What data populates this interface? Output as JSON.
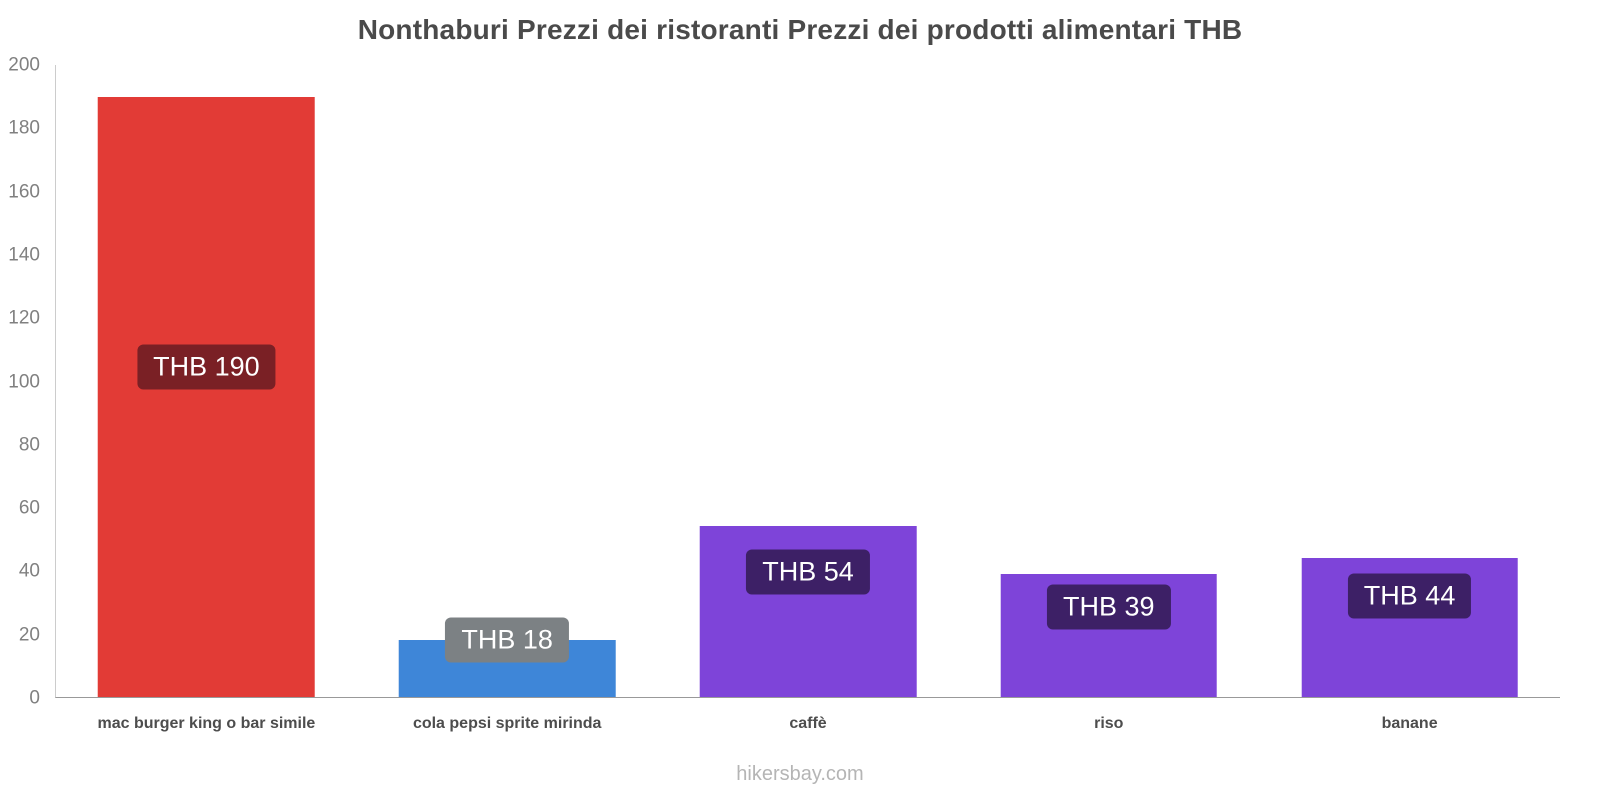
{
  "title": "Nonthaburi Prezzi dei ristoranti Prezzi dei prodotti alimentari THB",
  "footer": "hikersbay.com",
  "colors": {
    "red_bar": "#e23b36",
    "red_badge": "#7a2025",
    "blue_bar": "#3e86d8",
    "gray_badge": "#7c8184",
    "purple_bar": "#7e44d9",
    "purple_badge": "#3d2066",
    "axis_line": "#cccccc",
    "baseline": "#999999"
  },
  "chart_data": {
    "type": "bar",
    "title": "Nonthaburi Prezzi dei ristoranti Prezzi dei prodotti alimentari THB",
    "categories": [
      "mac burger king o bar simile",
      "cola pepsi sprite mirinda",
      "caffè",
      "riso",
      "banane"
    ],
    "values": [
      190,
      18,
      54,
      39,
      44
    ],
    "value_labels": [
      "THB 190",
      "THB 18",
      "THB 54",
      "THB 39",
      "THB 44"
    ],
    "bar_colors": [
      "#e23b36",
      "#3e86d8",
      "#7e44d9",
      "#7e44d9",
      "#7e44d9"
    ],
    "badge_colors": [
      "#7a2025",
      "#7c8184",
      "#3d2066",
      "#3d2066",
      "#3d2066"
    ],
    "xlabel": "",
    "ylabel": "",
    "ylim": [
      0,
      200
    ],
    "yticks": [
      0,
      20,
      40,
      60,
      80,
      100,
      120,
      140,
      160,
      180,
      200
    ],
    "grid": false,
    "legend": false,
    "currency": "THB"
  }
}
